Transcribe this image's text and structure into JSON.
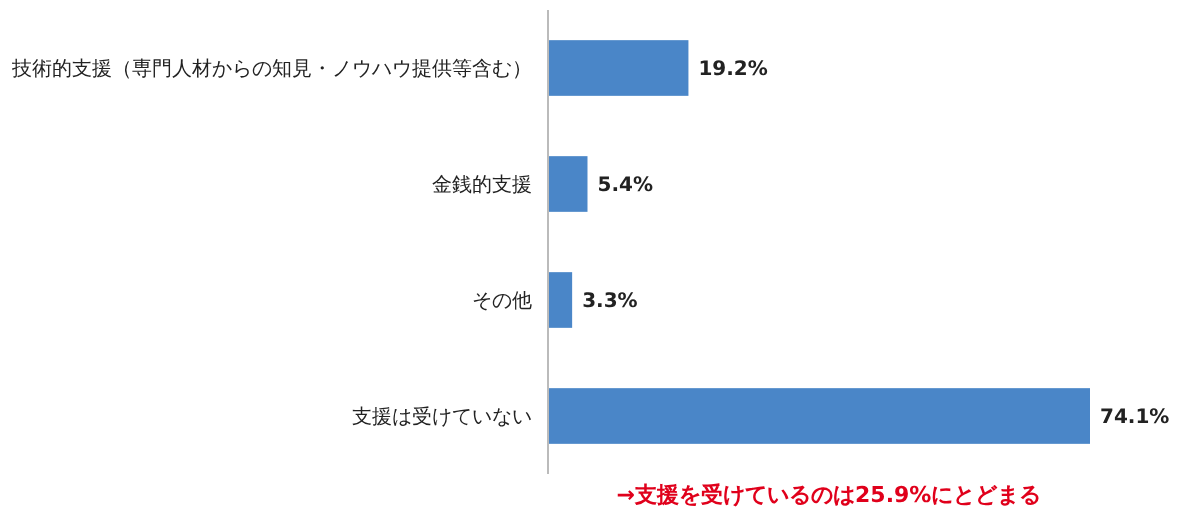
{
  "chart_data": {
    "type": "bar",
    "orientation": "horizontal",
    "categories": [
      "技術的支援（専門人材からの知見・ノウハウ提供等含む）",
      "金銭的支援",
      "その他",
      "支援は受けていない"
    ],
    "values": [
      19.2,
      5.4,
      3.3,
      74.1
    ],
    "value_labels": [
      "19.2%",
      "5.4%",
      "3.3%",
      "74.1%"
    ],
    "color": "#4a86c8",
    "tick_labels": "y",
    "annotations": [
      "→支援を受けているのは25.9%にとどまる"
    ]
  }
}
